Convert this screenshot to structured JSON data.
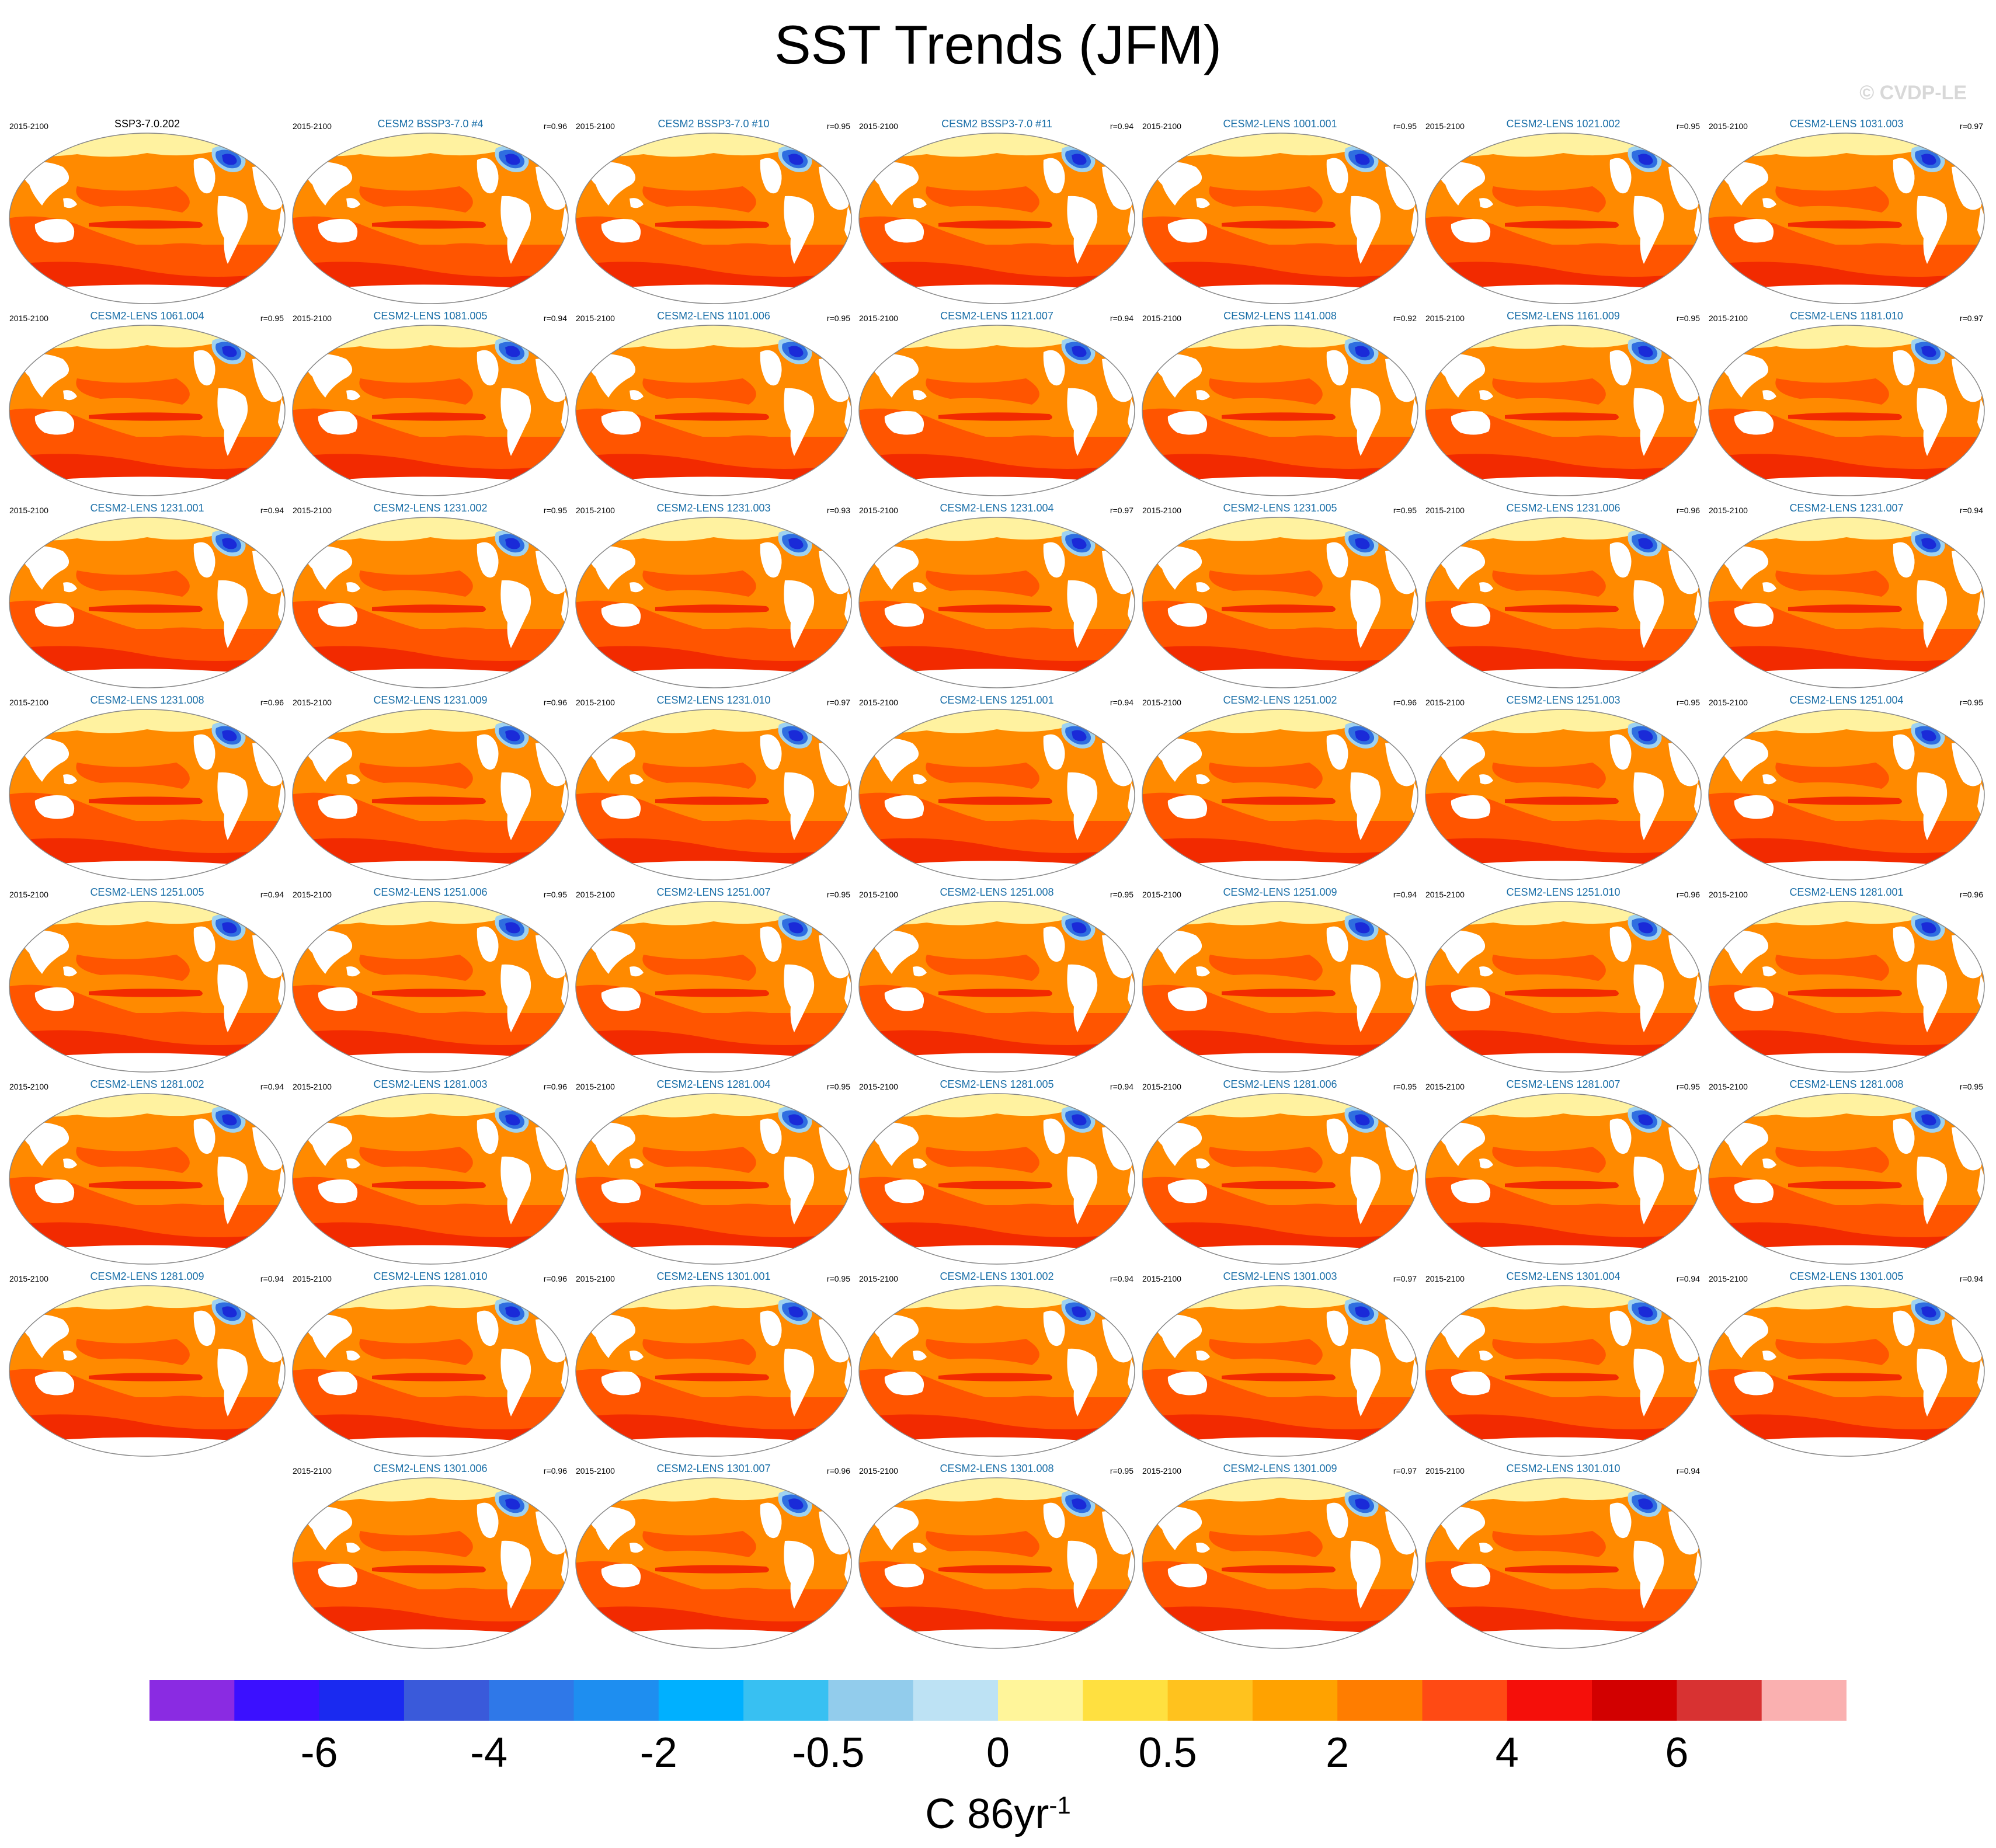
{
  "figure": {
    "title": "SST Trends (JFM)",
    "credit": "© CVDP-LE",
    "period": "2015-2100"
  },
  "panels": [
    {
      "name": "SSP3-7.0.202",
      "r": "",
      "base": true
    },
    {
      "name": "CESM2 BSSP3-7.0 #4",
      "r": "r=0.96"
    },
    {
      "name": "CESM2 BSSP3-7.0 #10",
      "r": "r=0.95"
    },
    {
      "name": "CESM2 BSSP3-7.0 #11",
      "r": "r=0.94"
    },
    {
      "name": "CESM2-LENS 1001.001",
      "r": "r=0.95"
    },
    {
      "name": "CESM2-LENS 1021.002",
      "r": "r=0.95"
    },
    {
      "name": "CESM2-LENS 1031.003",
      "r": "r=0.97"
    },
    {
      "name": "CESM2-LENS 1061.004",
      "r": "r=0.95"
    },
    {
      "name": "CESM2-LENS 1081.005",
      "r": "r=0.94"
    },
    {
      "name": "CESM2-LENS 1101.006",
      "r": "r=0.95"
    },
    {
      "name": "CESM2-LENS 1121.007",
      "r": "r=0.94"
    },
    {
      "name": "CESM2-LENS 1141.008",
      "r": "r=0.92"
    },
    {
      "name": "CESM2-LENS 1161.009",
      "r": "r=0.95"
    },
    {
      "name": "CESM2-LENS 1181.010",
      "r": "r=0.97"
    },
    {
      "name": "CESM2-LENS 1231.001",
      "r": "r=0.94"
    },
    {
      "name": "CESM2-LENS 1231.002",
      "r": "r=0.95"
    },
    {
      "name": "CESM2-LENS 1231.003",
      "r": "r=0.93"
    },
    {
      "name": "CESM2-LENS 1231.004",
      "r": "r=0.97"
    },
    {
      "name": "CESM2-LENS 1231.005",
      "r": "r=0.95"
    },
    {
      "name": "CESM2-LENS 1231.006",
      "r": "r=0.96"
    },
    {
      "name": "CESM2-LENS 1231.007",
      "r": "r=0.94"
    },
    {
      "name": "CESM2-LENS 1231.008",
      "r": "r=0.96"
    },
    {
      "name": "CESM2-LENS 1231.009",
      "r": "r=0.96"
    },
    {
      "name": "CESM2-LENS 1231.010",
      "r": "r=0.97"
    },
    {
      "name": "CESM2-LENS 1251.001",
      "r": "r=0.94"
    },
    {
      "name": "CESM2-LENS 1251.002",
      "r": "r=0.96"
    },
    {
      "name": "CESM2-LENS 1251.003",
      "r": "r=0.95"
    },
    {
      "name": "CESM2-LENS 1251.004",
      "r": "r=0.95"
    },
    {
      "name": "CESM2-LENS 1251.005",
      "r": "r=0.94"
    },
    {
      "name": "CESM2-LENS 1251.006",
      "r": "r=0.95"
    },
    {
      "name": "CESM2-LENS 1251.007",
      "r": "r=0.95"
    },
    {
      "name": "CESM2-LENS 1251.008",
      "r": "r=0.95"
    },
    {
      "name": "CESM2-LENS 1251.009",
      "r": "r=0.94"
    },
    {
      "name": "CESM2-LENS 1251.010",
      "r": "r=0.96"
    },
    {
      "name": "CESM2-LENS 1281.001",
      "r": "r=0.96"
    },
    {
      "name": "CESM2-LENS 1281.002",
      "r": "r=0.94"
    },
    {
      "name": "CESM2-LENS 1281.003",
      "r": "r=0.96"
    },
    {
      "name": "CESM2-LENS 1281.004",
      "r": "r=0.95"
    },
    {
      "name": "CESM2-LENS 1281.005",
      "r": "r=0.94"
    },
    {
      "name": "CESM2-LENS 1281.006",
      "r": "r=0.95"
    },
    {
      "name": "CESM2-LENS 1281.007",
      "r": "r=0.95"
    },
    {
      "name": "CESM2-LENS 1281.008",
      "r": "r=0.95"
    },
    {
      "name": "CESM2-LENS 1281.009",
      "r": "r=0.94"
    },
    {
      "name": "CESM2-LENS 1281.010",
      "r": "r=0.96"
    },
    {
      "name": "CESM2-LENS 1301.001",
      "r": "r=0.95"
    },
    {
      "name": "CESM2-LENS 1301.002",
      "r": "r=0.94"
    },
    {
      "name": "CESM2-LENS 1301.003",
      "r": "r=0.97"
    },
    {
      "name": "CESM2-LENS 1301.004",
      "r": "r=0.94"
    },
    {
      "name": "CESM2-LENS 1301.005",
      "r": "r=0.94"
    },
    {
      "name": "CESM2-LENS 1301.006",
      "r": "r=0.96"
    },
    {
      "name": "CESM2-LENS 1301.007",
      "r": "r=0.96"
    },
    {
      "name": "CESM2-LENS 1301.008",
      "r": "r=0.95"
    },
    {
      "name": "CESM2-LENS 1301.009",
      "r": "r=0.97"
    },
    {
      "name": "CESM2-LENS 1301.010",
      "r": "r=0.94"
    }
  ],
  "colorbar": {
    "colors": [
      "#8a2be2",
      "#3b10ff",
      "#1a2af0",
      "#3a5ada",
      "#2f78e8",
      "#1e8ef0",
      "#00b0ff",
      "#38c0f2",
      "#92ccec",
      "#bde2f4",
      "#fff59a",
      "#ffe040",
      "#ffc21e",
      "#ffa200",
      "#ff7d00",
      "#ff4a14",
      "#f50f0a",
      "#d20000",
      "#d83232",
      "#fab0b0"
    ],
    "labels": [
      "-6",
      "-4",
      "-2",
      "-0.5",
      "0",
      "0.5",
      "2",
      "4",
      "6"
    ],
    "units": "C 86yr",
    "units_exponent": "-1"
  },
  "map_colors": {
    "ocean_base": "#ff8a00",
    "warm": "#ff5500",
    "hot": "#f22a00",
    "arctic": "#fff2a0",
    "cold": "#2f6ee0",
    "cold_core": "#1a2ad8",
    "cold_edge": "#9ed2f0",
    "land": "#ffffff"
  }
}
